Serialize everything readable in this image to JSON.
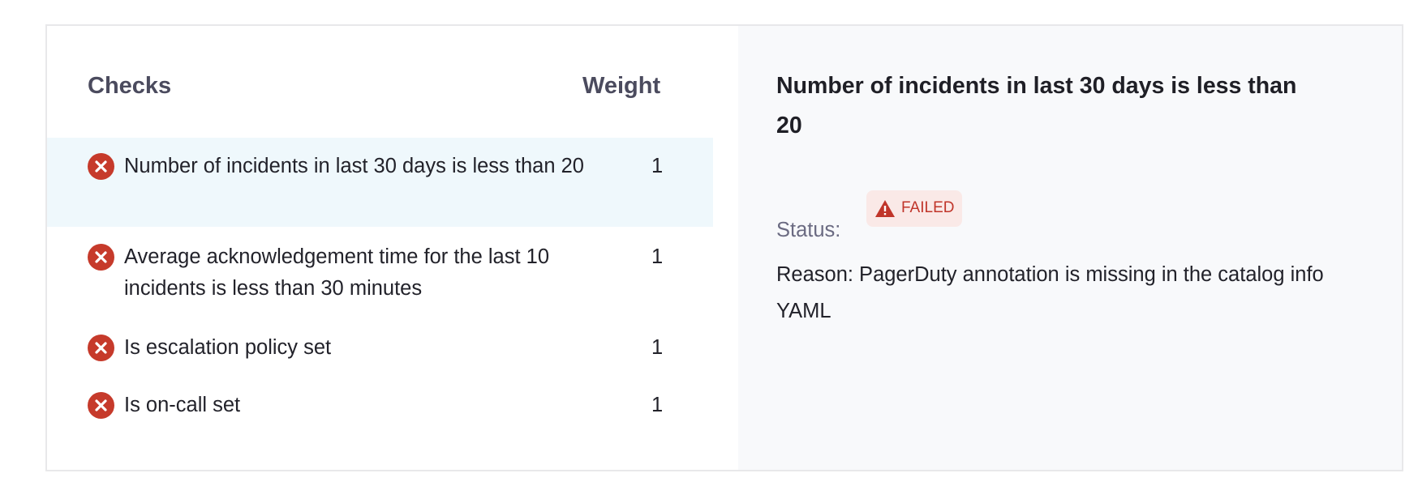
{
  "checks_table": {
    "header_checks": "Checks",
    "header_weight": "Weight",
    "rows": [
      {
        "label": "Number of incidents in last 30 days is less than 20",
        "weight": "1",
        "status_icon": "x-circle-icon",
        "selected": true
      },
      {
        "label": "Average acknowledgement time for the last 10 incidents is less than 30 minutes",
        "weight": "1",
        "status_icon": "x-circle-icon",
        "selected": false
      },
      {
        "label": "Is escalation policy set",
        "weight": "1",
        "status_icon": "x-circle-icon",
        "selected": false
      },
      {
        "label": "Is on-call set",
        "weight": "1",
        "status_icon": "x-circle-icon",
        "selected": false
      }
    ]
  },
  "detail": {
    "title": "Number of incidents in last 30 days is less than 20",
    "status_label": "Status:",
    "status_value": "FAILED",
    "status_icon": "warning-triangle-icon",
    "reason": "Reason: PagerDuty annotation is missing in the catalog info YAML"
  },
  "colors": {
    "failed": "#c63a2b",
    "selected_row": "#eff8fc",
    "detail_bg": "#f8f9fb",
    "badge_bg": "#fae9e7"
  }
}
